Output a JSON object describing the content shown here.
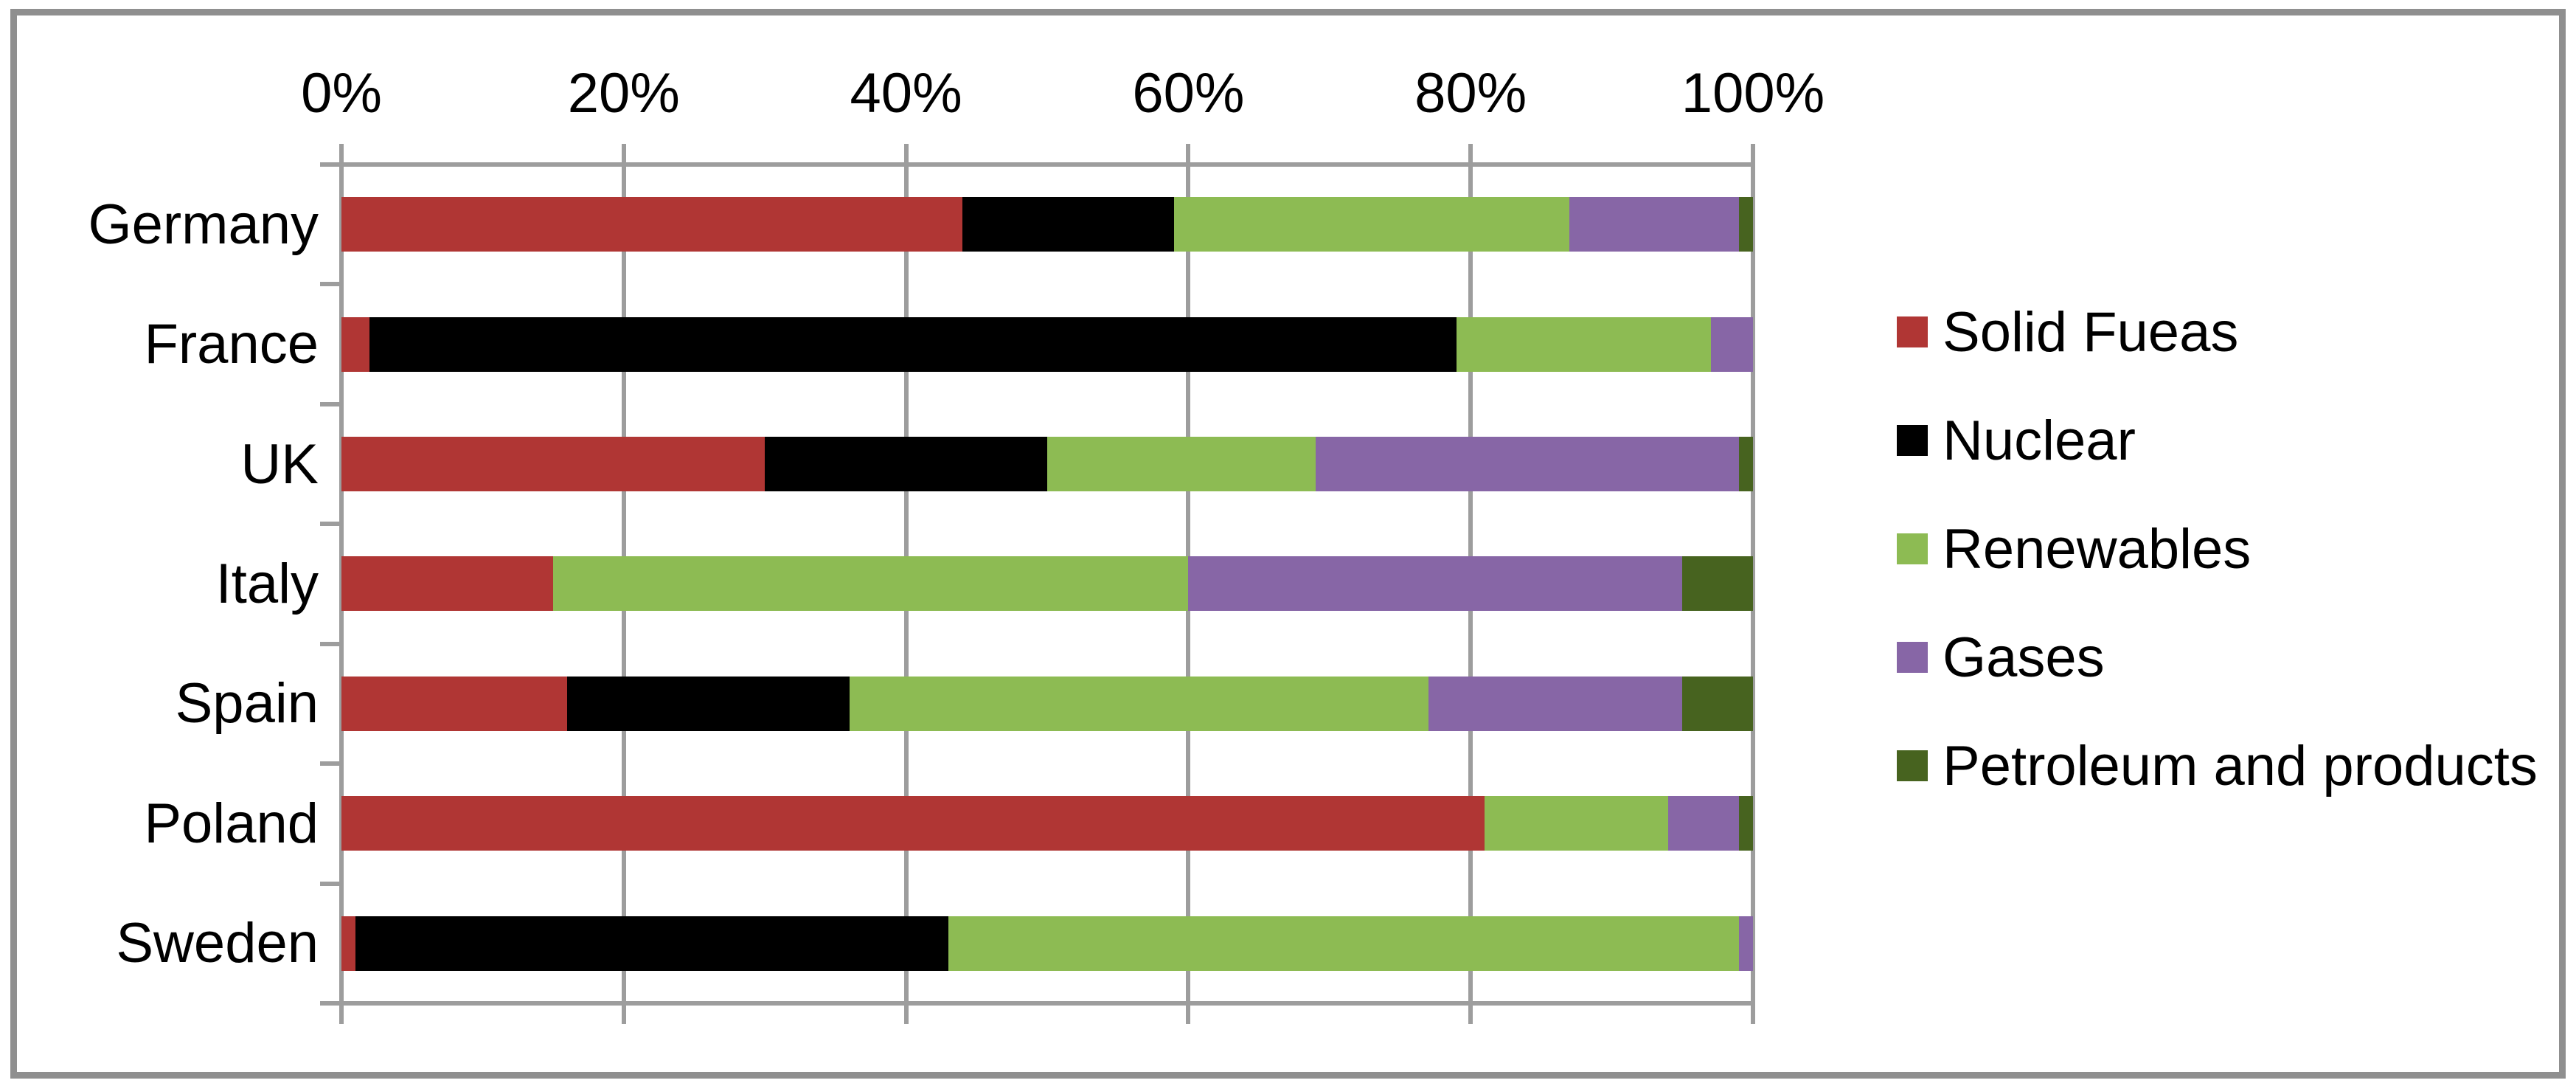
{
  "chart_data": {
    "type": "bar",
    "variant": "horizontal-stacked",
    "title": "",
    "categories": [
      "Germany",
      "France",
      "UK",
      "Italy",
      "Spain",
      "Poland",
      "Sweden"
    ],
    "series": [
      {
        "name": "Solid Fueas",
        "color": "#B03634",
        "values": [
          44,
          2,
          30,
          15,
          16,
          81,
          1
        ]
      },
      {
        "name": "Nuclear",
        "color": "#000000",
        "values": [
          15,
          77,
          20,
          0,
          20,
          0,
          42
        ]
      },
      {
        "name": "Renewables",
        "color": "#8DBB53",
        "values": [
          28,
          18,
          19,
          45,
          41,
          13,
          56
        ]
      },
      {
        "name": "Gases",
        "color": "#8766A6",
        "values": [
          12,
          3,
          30,
          35,
          18,
          5,
          1
        ]
      },
      {
        "name": "Petroleum and products",
        "color": "#47631F",
        "values": [
          1,
          0,
          1,
          5,
          5,
          1,
          0
        ]
      }
    ],
    "x_axis": {
      "min": 0,
      "max": 100,
      "unit": "%",
      "tick_step": 20,
      "tick_labels": [
        "0%",
        "20%",
        "40%",
        "60%",
        "80%",
        "100%"
      ]
    },
    "grid": true,
    "grid_color": "#9D9D9D",
    "frame_color": "#8F8F8F",
    "legend_position": "right"
  }
}
